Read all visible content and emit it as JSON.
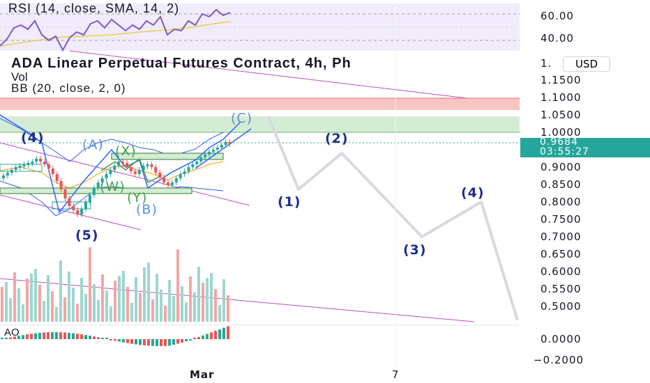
{
  "indicators": {
    "rsi_label": "RSI (14, close, SMA, 14, 2)",
    "symbol_title": "ADA Linear Perpetual Futures Contract, 4h, Ph",
    "vol_label": "Vol",
    "bb_label": "BB (20, close, 2, 0)",
    "ao_label": "AO"
  },
  "price_axis": {
    "rsi_ticks": [
      "60.00",
      "40.00"
    ],
    "currency": "USD",
    "currency_prefix": "1.",
    "ticks": [
      "1.1500",
      "1.1000",
      "1.0500",
      "1.0000",
      "0.9000",
      "0.8500",
      "0.8000",
      "0.7500",
      "0.7000",
      "0.6500",
      "0.6000",
      "0.5500",
      "0.5000"
    ],
    "ao_ticks": [
      "0.0000",
      "−0.2000"
    ],
    "last_price": "0.9684",
    "countdown": "03:55:27"
  },
  "time_axis": {
    "labels": [
      "Mar",
      "7"
    ]
  },
  "wave_labels": {
    "c": "(C)",
    "four_past": "(4)",
    "a": "(A)",
    "x": "(X)",
    "w": "(W)",
    "y": "(Y)",
    "b": "(B)",
    "five": "(5)",
    "one": "(1)",
    "two": "(2)",
    "three": "(3)",
    "four": "(4)"
  },
  "colors": {
    "bull": "#26a69a",
    "bear": "#ef5350",
    "wave_blue": "#1c2f8c",
    "resistance_zone": "#f8c6c2",
    "support_zone": "#cfe9cf",
    "rsi_line": "#7e57c2",
    "trend_line": "#c04bc0"
  }
}
